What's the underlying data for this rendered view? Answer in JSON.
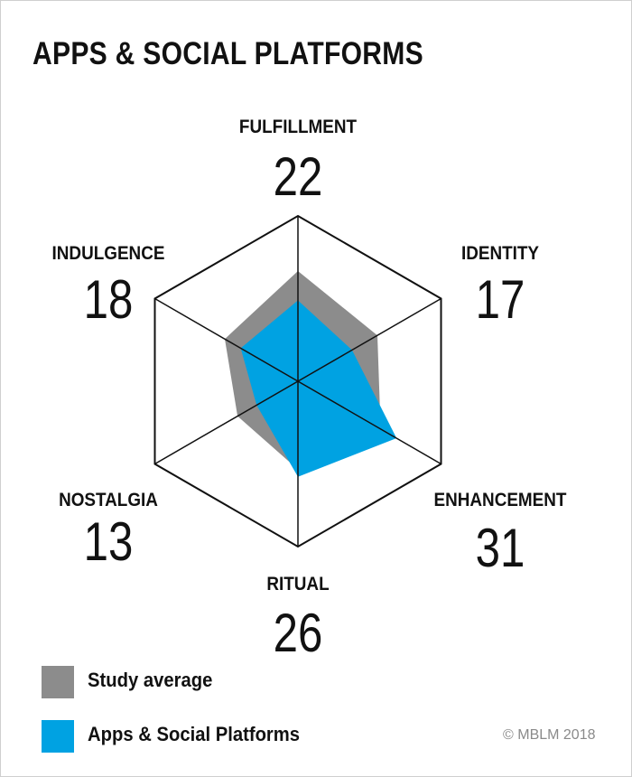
{
  "chart_data": {
    "type": "radar",
    "title": "APPS & SOCIAL PLATFORMS",
    "axes": [
      "FULFILLMENT",
      "IDENTITY",
      "ENHANCEMENT",
      "RITUAL",
      "NOSTALGIA",
      "INDULGENCE"
    ],
    "max": 45,
    "grid": "hexagon",
    "series": [
      {
        "name": "Study average",
        "color": "#8c8c8c",
        "values": [
          30,
          25,
          26,
          24,
          19,
          23
        ]
      },
      {
        "name": "Apps & Social Platforms",
        "color": "#00a2e2",
        "values": [
          22,
          17,
          31,
          26,
          13,
          18
        ]
      }
    ],
    "labels": [
      {
        "axis": "FULFILLMENT",
        "value": "22"
      },
      {
        "axis": "IDENTITY",
        "value": "17"
      },
      {
        "axis": "ENHANCEMENT",
        "value": "31"
      },
      {
        "axis": "RITUAL",
        "value": "26"
      },
      {
        "axis": "NOSTALGIA",
        "value": "13"
      },
      {
        "axis": "INDULGENCE",
        "value": "18"
      }
    ],
    "legend": [
      {
        "label": "Study average",
        "color": "#8c8c8c"
      },
      {
        "label": "Apps & Social Platforms",
        "color": "#00a2e2"
      }
    ],
    "legend_position": "bottom-left"
  },
  "footer": {
    "credit": "© MBLM 2018"
  }
}
